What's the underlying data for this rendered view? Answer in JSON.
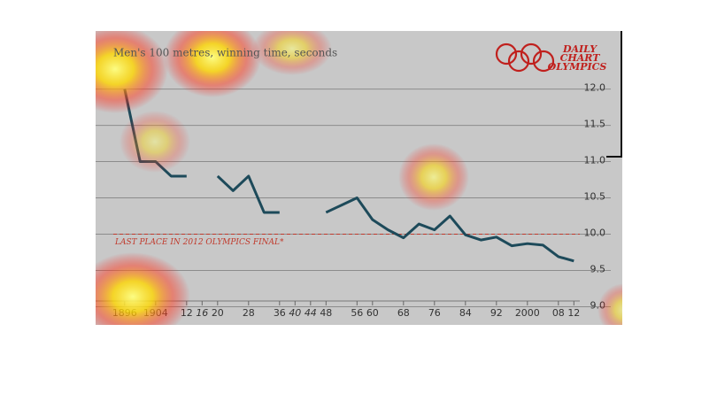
{
  "chart_data": {
    "type": "line",
    "title": "Men's 100 metres, winning time, seconds",
    "logo": [
      "DAILY",
      "CHART",
      "OLYMPICS"
    ],
    "x": [
      1896,
      1900,
      1904,
      1908,
      1912,
      1916,
      1920,
      1924,
      1928,
      1932,
      1936,
      1940,
      1944,
      1948,
      1952,
      1956,
      1960,
      1964,
      1968,
      1972,
      1976,
      1980,
      1984,
      1988,
      1992,
      1996,
      2000,
      2004,
      2008,
      2012
    ],
    "series": [
      {
        "color": "#1d4a5a",
        "values": [
          12.0,
          11.0,
          11.0,
          10.8,
          10.8,
          null,
          10.8,
          10.6,
          10.8,
          10.3,
          10.3,
          null,
          null,
          10.3,
          10.4,
          10.5,
          10.2,
          10.06,
          9.95,
          10.14,
          10.06,
          10.25,
          9.99,
          9.92,
          9.96,
          9.84,
          9.87,
          9.85,
          9.69,
          9.63
        ]
      }
    ],
    "reference": {
      "value": 10.0,
      "label": "LAST PLACE IN 2012 OLYMPICS FINAL*",
      "color": "#c0392b"
    },
    "xlim": [
      1888.5,
      2024.5
    ],
    "ylim": [
      8.75,
      12.8
    ],
    "yticks": [
      {
        "value": 9,
        "label": "9.0"
      },
      9.5,
      {
        "value": 10,
        "label": "10.0"
      },
      10.5,
      {
        "value": 11,
        "label": "11.0"
      },
      11.5,
      {
        "value": 12,
        "label": "12.0"
      }
    ],
    "xticks": [
      {
        "value": 1896,
        "label": "1896"
      },
      {
        "value": 1904,
        "label": "1904"
      },
      {
        "value": 1912,
        "label": "12"
      },
      {
        "value": 1916,
        "label": "16"
      },
      {
        "value": 1920,
        "label": "20"
      },
      {
        "value": 1928,
        "label": "28"
      },
      {
        "value": 1936,
        "label": "36"
      },
      {
        "value": 1940,
        "label": "40"
      },
      {
        "value": 1944,
        "label": "44"
      },
      {
        "value": 1948,
        "label": "48"
      },
      {
        "value": 1956,
        "label": "56"
      },
      {
        "value": 1960,
        "label": "60"
      },
      {
        "value": 1968,
        "label": "68"
      },
      {
        "value": 1976,
        "label": "76"
      },
      {
        "value": 1984,
        "label": "84"
      },
      {
        "value": 1992,
        "label": "92"
      },
      {
        "value": 2000,
        "label": "2000"
      },
      {
        "value": 2008,
        "label": "08"
      },
      {
        "value": 2012,
        "label": "12"
      }
    ],
    "muted_xticks": [
      1916,
      1940,
      1944
    ],
    "grid": true
  }
}
